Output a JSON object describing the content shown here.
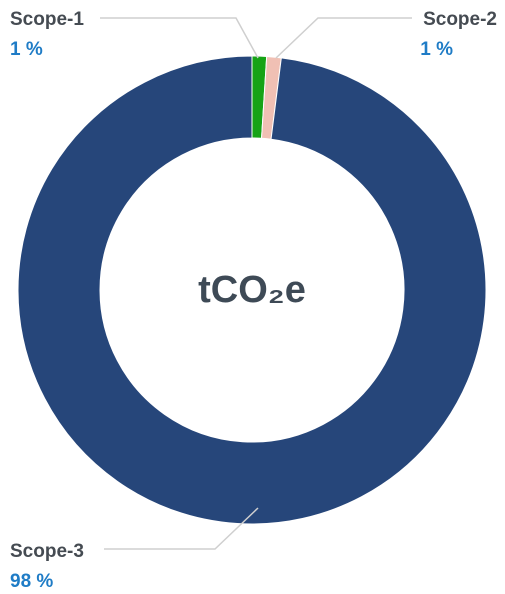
{
  "chart_data": {
    "type": "donut",
    "categories": [
      "Scope-1",
      "Scope-2",
      "Scope-3"
    ],
    "values": [
      1,
      1,
      98
    ],
    "value_labels": [
      "1 %",
      "1 %",
      "98 %"
    ],
    "colors": [
      "#16a316",
      "#f0c0b4",
      "#26467a"
    ],
    "center_label": "tCO₂e"
  }
}
